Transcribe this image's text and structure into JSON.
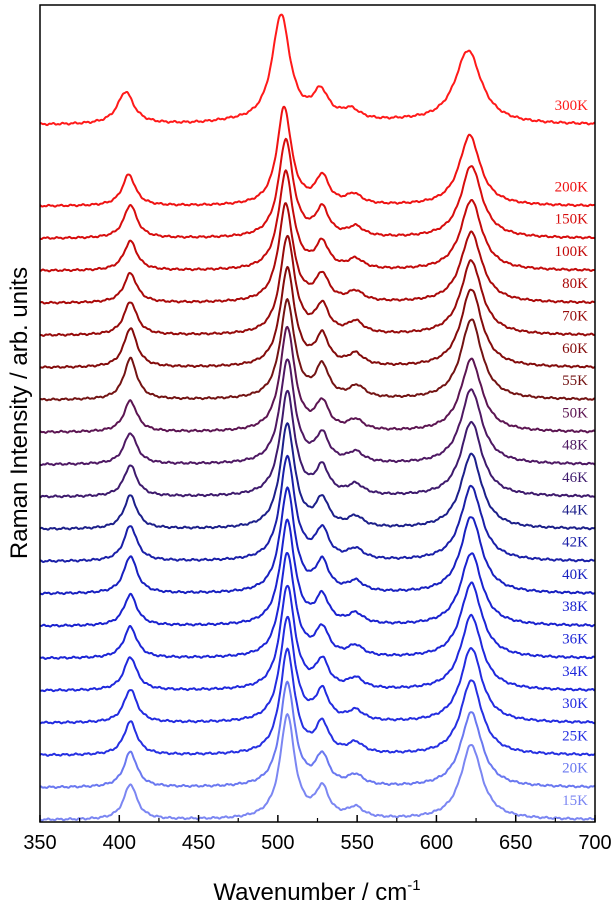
{
  "chart_data": {
    "type": "line",
    "xlabel": "Wavenumber / cm",
    "xlabel_superscript": "-1",
    "ylabel": "Raman Intensity / arb. units",
    "xlim": [
      350,
      700
    ],
    "x_ticks": [
      "350",
      "400",
      "450",
      "500",
      "550",
      "600",
      "650",
      "700"
    ],
    "grid": false,
    "legend": "inline labels at right end of each trace",
    "peak_positions_cm-1": [
      405,
      503,
      527,
      548,
      620
    ],
    "series": [
      {
        "name": "300K",
        "color": "#ff1a1a",
        "peaks": [
          {
            "x": 404,
            "h": 0.3
          },
          {
            "x": 502,
            "h": 1.0
          },
          {
            "x": 527,
            "h": 0.26
          },
          {
            "x": 546,
            "h": 0.1
          },
          {
            "x": 620,
            "h": 0.68
          }
        ]
      },
      {
        "name": "200K",
        "color": "#ee1212",
        "peaks": [
          {
            "x": 406,
            "h": 0.32
          },
          {
            "x": 504,
            "h": 1.0
          },
          {
            "x": 528,
            "h": 0.28
          },
          {
            "x": 548,
            "h": 0.1
          },
          {
            "x": 621,
            "h": 0.72
          }
        ]
      },
      {
        "name": "150K",
        "color": "#d70d0d",
        "peaks": [
          {
            "x": 407,
            "h": 0.34
          },
          {
            "x": 505,
            "h": 1.0
          },
          {
            "x": 528,
            "h": 0.28
          },
          {
            "x": 549,
            "h": 0.1
          },
          {
            "x": 622,
            "h": 0.74
          }
        ]
      },
      {
        "name": "100K",
        "color": "#c30a0a",
        "peaks": [
          {
            "x": 407,
            "h": 0.3
          },
          {
            "x": 505,
            "h": 1.0
          },
          {
            "x": 528,
            "h": 0.26
          },
          {
            "x": 549,
            "h": 0.1
          },
          {
            "x": 622,
            "h": 0.72
          }
        ]
      },
      {
        "name": "80K",
        "color": "#aa0909",
        "peaks": [
          {
            "x": 407,
            "h": 0.3
          },
          {
            "x": 505,
            "h": 1.0
          },
          {
            "x": 528,
            "h": 0.26
          },
          {
            "x": 549,
            "h": 0.1
          },
          {
            "x": 622,
            "h": 0.72
          }
        ]
      },
      {
        "name": "70K",
        "color": "#960a0a",
        "peaks": [
          {
            "x": 407,
            "h": 0.34
          },
          {
            "x": 506,
            "h": 1.0
          },
          {
            "x": 528,
            "h": 0.28
          },
          {
            "x": 549,
            "h": 0.12
          },
          {
            "x": 622,
            "h": 0.76
          }
        ]
      },
      {
        "name": "60K",
        "color": "#830b0b",
        "peaks": [
          {
            "x": 407,
            "h": 0.4
          },
          {
            "x": 506,
            "h": 1.0
          },
          {
            "x": 528,
            "h": 0.3
          },
          {
            "x": 549,
            "h": 0.12
          },
          {
            "x": 622,
            "h": 0.8
          }
        ]
      },
      {
        "name": "55K",
        "color": "#731313",
        "peaks": [
          {
            "x": 407,
            "h": 0.42
          },
          {
            "x": 506,
            "h": 1.0
          },
          {
            "x": 528,
            "h": 0.32
          },
          {
            "x": 550,
            "h": 0.12
          },
          {
            "x": 622,
            "h": 0.82
          }
        ]
      },
      {
        "name": "50K",
        "color": "#5c1552",
        "peaks": [
          {
            "x": 407,
            "h": 0.3
          },
          {
            "x": 506,
            "h": 1.0
          },
          {
            "x": 528,
            "h": 0.26
          },
          {
            "x": 549,
            "h": 0.1
          },
          {
            "x": 622,
            "h": 0.7
          }
        ]
      },
      {
        "name": "48K",
        "color": "#4e1863",
        "peaks": [
          {
            "x": 407,
            "h": 0.3
          },
          {
            "x": 506,
            "h": 1.0
          },
          {
            "x": 528,
            "h": 0.26
          },
          {
            "x": 549,
            "h": 0.1
          },
          {
            "x": 622,
            "h": 0.72
          }
        ]
      },
      {
        "name": "46K",
        "color": "#3e1a6d",
        "peaks": [
          {
            "x": 407,
            "h": 0.3
          },
          {
            "x": 506,
            "h": 1.0
          },
          {
            "x": 528,
            "h": 0.26
          },
          {
            "x": 549,
            "h": 0.1
          },
          {
            "x": 622,
            "h": 0.72
          }
        ]
      },
      {
        "name": "44K",
        "color": "#1c1f8a",
        "peaks": [
          {
            "x": 407,
            "h": 0.32
          },
          {
            "x": 506,
            "h": 1.0
          },
          {
            "x": 528,
            "h": 0.26
          },
          {
            "x": 549,
            "h": 0.1
          },
          {
            "x": 622,
            "h": 0.72
          }
        ]
      },
      {
        "name": "42K",
        "color": "#1a1fa8",
        "peaks": [
          {
            "x": 407,
            "h": 0.34
          },
          {
            "x": 506,
            "h": 1.0
          },
          {
            "x": 528,
            "h": 0.28
          },
          {
            "x": 549,
            "h": 0.1
          },
          {
            "x": 622,
            "h": 0.72
          }
        ]
      },
      {
        "name": "40K",
        "color": "#1820c0",
        "peaks": [
          {
            "x": 407,
            "h": 0.36
          },
          {
            "x": 506,
            "h": 1.0
          },
          {
            "x": 528,
            "h": 0.28
          },
          {
            "x": 549,
            "h": 0.1
          },
          {
            "x": 622,
            "h": 0.74
          }
        ]
      },
      {
        "name": "38K",
        "color": "#1a22cf",
        "peaks": [
          {
            "x": 407,
            "h": 0.3
          },
          {
            "x": 506,
            "h": 1.0
          },
          {
            "x": 528,
            "h": 0.26
          },
          {
            "x": 549,
            "h": 0.1
          },
          {
            "x": 622,
            "h": 0.7
          }
        ]
      },
      {
        "name": "36K",
        "color": "#1c25d6",
        "peaks": [
          {
            "x": 407,
            "h": 0.3
          },
          {
            "x": 506,
            "h": 1.0
          },
          {
            "x": 528,
            "h": 0.26
          },
          {
            "x": 549,
            "h": 0.1
          },
          {
            "x": 622,
            "h": 0.72
          }
        ]
      },
      {
        "name": "34K",
        "color": "#1f28dc",
        "peaks": [
          {
            "x": 407,
            "h": 0.32
          },
          {
            "x": 506,
            "h": 1.0
          },
          {
            "x": 528,
            "h": 0.26
          },
          {
            "x": 549,
            "h": 0.1
          },
          {
            "x": 622,
            "h": 0.72
          }
        ]
      },
      {
        "name": "30K",
        "color": "#222be0",
        "peaks": [
          {
            "x": 407,
            "h": 0.32
          },
          {
            "x": 506,
            "h": 1.0
          },
          {
            "x": 528,
            "h": 0.28
          },
          {
            "x": 549,
            "h": 0.1
          },
          {
            "x": 622,
            "h": 0.72
          }
        ]
      },
      {
        "name": "25K",
        "color": "#2630e2",
        "peaks": [
          {
            "x": 407,
            "h": 0.32
          },
          {
            "x": 506,
            "h": 1.0
          },
          {
            "x": 528,
            "h": 0.28
          },
          {
            "x": 549,
            "h": 0.1
          },
          {
            "x": 622,
            "h": 0.72
          }
        ]
      },
      {
        "name": "20K",
        "color": "#6a78f0",
        "peaks": [
          {
            "x": 407,
            "h": 0.34
          },
          {
            "x": 506,
            "h": 1.0
          },
          {
            "x": 528,
            "h": 0.28
          },
          {
            "x": 549,
            "h": 0.1
          },
          {
            "x": 622,
            "h": 0.72
          }
        ]
      },
      {
        "name": "15K",
        "color": "#7b86f2",
        "peaks": [
          {
            "x": 407,
            "h": 0.34
          },
          {
            "x": 506,
            "h": 1.0
          },
          {
            "x": 528,
            "h": 0.28
          },
          {
            "x": 549,
            "h": 0.1
          },
          {
            "x": 622,
            "h": 0.72
          }
        ]
      }
    ]
  }
}
